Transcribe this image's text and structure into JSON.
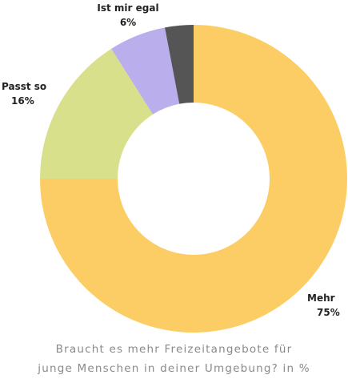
{
  "chart_data": {
    "type": "pie",
    "donut": true,
    "slices": [
      {
        "label": "Mehr",
        "percent_label": "75%",
        "value": 75,
        "color": "#FCCD64"
      },
      {
        "label": "Passt so",
        "percent_label": "16%",
        "value": 16,
        "color": "#D9E08C"
      },
      {
        "label": "Ist mir egal",
        "percent_label": "6%",
        "value": 6,
        "color": "#BAAEEC"
      },
      {
        "label": "",
        "percent_label": "",
        "value": 3,
        "color": "#555555"
      }
    ],
    "caption": {
      "line1": "Braucht es mehr Freizeitangebote für",
      "line2": "junge Menschen in deiner Umgebung? in %"
    }
  }
}
